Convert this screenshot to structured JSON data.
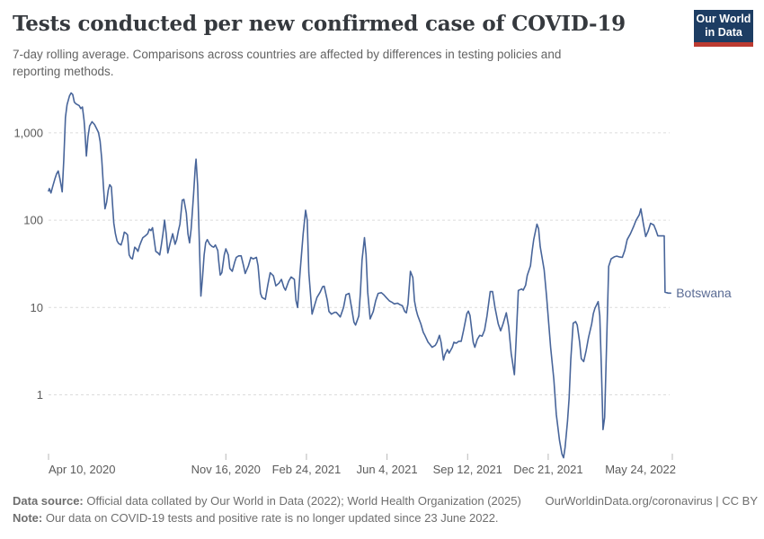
{
  "header": {
    "title": "Tests conducted per new confirmed case of COVID-19",
    "subtitle_lines": [
      "7-day rolling average. Comparisons across countries are affected by differences in testing policies and",
      "reporting methods."
    ],
    "logo": {
      "line1": "Our World",
      "line2": "in Data"
    }
  },
  "footer": {
    "source_label": "Data source:",
    "source_text": " Official data collated by Our World in Data (2022); World Health Organization (2025)",
    "attribution": "OurWorldinData.org/coronavirus | CC BY",
    "note_label": "Note:",
    "note_text": " Our data on COVID-19 tests and positive rate is no longer updated since 23 June 2022."
  },
  "colors": {
    "line": "#48659a",
    "end_label": "#5a6b94",
    "grid": "#dcdcdc",
    "axis_text": "#5b5b5b",
    "tick_mark": "#b8b8b8",
    "logo_bg": "#1d3d63",
    "logo_accent": "#bc3b31"
  },
  "chart_data": {
    "type": "line",
    "title": "Tests conducted per new confirmed case of COVID-19",
    "xlabel": "",
    "ylabel": "",
    "grid": true,
    "legend_position": "end-of-line-label",
    "y_axis": {
      "scale": "log",
      "ticks": [
        {
          "label": "1",
          "value": 1
        },
        {
          "label": "10",
          "value": 10
        },
        {
          "label": "100",
          "value": 100
        },
        {
          "label": "1,000",
          "value": 1000
        }
      ]
    },
    "x_axis": {
      "type": "time",
      "unit": "days since Apr 10, 2020",
      "domain_days": [
        0,
        774
      ],
      "ticks": [
        {
          "label": "Apr 10, 2020",
          "day": 0
        },
        {
          "label": "Nov 16, 2020",
          "day": 220
        },
        {
          "label": "Feb 24, 2021",
          "day": 320
        },
        {
          "label": "Jun 4, 2021",
          "day": 420
        },
        {
          "label": "Sep 12, 2021",
          "day": 520
        },
        {
          "label": "Dec 21, 2021",
          "day": 620
        },
        {
          "label": "May 24, 2022",
          "day": 774
        }
      ]
    },
    "series": [
      {
        "name": "Botswana",
        "points": [
          [
            0,
            216
          ],
          [
            1,
            230
          ],
          [
            3,
            205
          ],
          [
            5,
            240
          ],
          [
            8,
            300
          ],
          [
            10,
            340
          ],
          [
            12,
            366
          ],
          [
            13,
            330
          ],
          [
            14,
            300
          ],
          [
            16,
            240
          ],
          [
            17,
            211
          ],
          [
            19,
            500
          ],
          [
            21,
            1500
          ],
          [
            23,
            2100
          ],
          [
            26,
            2650
          ],
          [
            28,
            2860
          ],
          [
            30,
            2750
          ],
          [
            32,
            2250
          ],
          [
            34,
            2150
          ],
          [
            36,
            2100
          ],
          [
            38,
            2050
          ],
          [
            40,
            1900
          ],
          [
            42,
            1980
          ],
          [
            44,
            1400
          ],
          [
            45,
            1100
          ],
          [
            47,
            543
          ],
          [
            49,
            900
          ],
          [
            51,
            1200
          ],
          [
            54,
            1340
          ],
          [
            56,
            1280
          ],
          [
            57,
            1250
          ],
          [
            59,
            1150
          ],
          [
            62,
            1010
          ],
          [
            64,
            800
          ],
          [
            66,
            500
          ],
          [
            68,
            250
          ],
          [
            70,
            135
          ],
          [
            72,
            160
          ],
          [
            74,
            220
          ],
          [
            76,
            255
          ],
          [
            78,
            240
          ],
          [
            81,
            93
          ],
          [
            83,
            70
          ],
          [
            85,
            58
          ],
          [
            87,
            54
          ],
          [
            90,
            52
          ],
          [
            92,
            60
          ],
          [
            94,
            73
          ],
          [
            96,
            71
          ],
          [
            98,
            68
          ],
          [
            100,
            40
          ],
          [
            102,
            37
          ],
          [
            104,
            36
          ],
          [
            107,
            49
          ],
          [
            109,
            47
          ],
          [
            111,
            44
          ],
          [
            113,
            51
          ],
          [
            115,
            57
          ],
          [
            117,
            63
          ],
          [
            120,
            66
          ],
          [
            123,
            70
          ],
          [
            125,
            79
          ],
          [
            127,
            76
          ],
          [
            129,
            82
          ],
          [
            131,
            60
          ],
          [
            133,
            44
          ],
          [
            136,
            42
          ],
          [
            138,
            40
          ],
          [
            140,
            52
          ],
          [
            142,
            70
          ],
          [
            144,
            100
          ],
          [
            146,
            70
          ],
          [
            148,
            42
          ],
          [
            151,
            55
          ],
          [
            154,
            70
          ],
          [
            157,
            53
          ],
          [
            159,
            60
          ],
          [
            161,
            75
          ],
          [
            163,
            90
          ],
          [
            166,
            170
          ],
          [
            168,
            173
          ],
          [
            171,
            120
          ],
          [
            173,
            70
          ],
          [
            175,
            55
          ],
          [
            177,
            80
          ],
          [
            180,
            200
          ],
          [
            182,
            400
          ],
          [
            183,
            500
          ],
          [
            185,
            250
          ],
          [
            187,
            60
          ],
          [
            189,
            13.5
          ],
          [
            191,
            22
          ],
          [
            193,
            40
          ],
          [
            195,
            55
          ],
          [
            197,
            60
          ],
          [
            200,
            53
          ],
          [
            203,
            50
          ],
          [
            205,
            49
          ],
          [
            207,
            52
          ],
          [
            210,
            45
          ],
          [
            211,
            35
          ],
          [
            213,
            23.5
          ],
          [
            215,
            25
          ],
          [
            218,
            40
          ],
          [
            220,
            47
          ],
          [
            223,
            40
          ],
          [
            225,
            28
          ],
          [
            228,
            26
          ],
          [
            231,
            33
          ],
          [
            233,
            37.5
          ],
          [
            236,
            39
          ],
          [
            239,
            39
          ],
          [
            242,
            30
          ],
          [
            244,
            24.5
          ],
          [
            248,
            30
          ],
          [
            251,
            37.5
          ],
          [
            254,
            36
          ],
          [
            258,
            37.5
          ],
          [
            260,
            30
          ],
          [
            263,
            14.5
          ],
          [
            265,
            13
          ],
          [
            269,
            12.4
          ],
          [
            272,
            18
          ],
          [
            275,
            25
          ],
          [
            279,
            23
          ],
          [
            282,
            17.7
          ],
          [
            286,
            19
          ],
          [
            289,
            21
          ],
          [
            292,
            17
          ],
          [
            294,
            15.8
          ],
          [
            298,
            20
          ],
          [
            301,
            22.4
          ],
          [
            305,
            21
          ],
          [
            307,
            12
          ],
          [
            309,
            10
          ],
          [
            312,
            25
          ],
          [
            316,
            70
          ],
          [
            319,
            130
          ],
          [
            321,
            100
          ],
          [
            323,
            25
          ],
          [
            327,
            8.4
          ],
          [
            330,
            10.5
          ],
          [
            333,
            13
          ],
          [
            337,
            15
          ],
          [
            340,
            17.3
          ],
          [
            342,
            17.5
          ],
          [
            346,
            12
          ],
          [
            348,
            9
          ],
          [
            351,
            8.4
          ],
          [
            355,
            8.8
          ],
          [
            357,
            8.8
          ],
          [
            360,
            8.2
          ],
          [
            362,
            7.8
          ],
          [
            366,
            10
          ],
          [
            369,
            14
          ],
          [
            373,
            14.5
          ],
          [
            376,
            10
          ],
          [
            379,
            6.8
          ],
          [
            381,
            6.3
          ],
          [
            385,
            8
          ],
          [
            387,
            15
          ],
          [
            389,
            35
          ],
          [
            392,
            63
          ],
          [
            394,
            40
          ],
          [
            396,
            15
          ],
          [
            399,
            7.4
          ],
          [
            403,
            9
          ],
          [
            406,
            12
          ],
          [
            409,
            14.5
          ],
          [
            413,
            14.8
          ],
          [
            416,
            14
          ],
          [
            419,
            13
          ],
          [
            423,
            11.9
          ],
          [
            426,
            11.5
          ],
          [
            429,
            11
          ],
          [
            433,
            11.2
          ],
          [
            436,
            10.8
          ],
          [
            439,
            10.5
          ],
          [
            442,
            9
          ],
          [
            444,
            8.7
          ],
          [
            446,
            11
          ],
          [
            449,
            26
          ],
          [
            452,
            22
          ],
          [
            454,
            12
          ],
          [
            456,
            9.5
          ],
          [
            458,
            8.1
          ],
          [
            462,
            6.5
          ],
          [
            465,
            5.2
          ],
          [
            467,
            4.8
          ],
          [
            471,
            4
          ],
          [
            473,
            3.8
          ],
          [
            476,
            3.5
          ],
          [
            480,
            3.7
          ],
          [
            482,
            4
          ],
          [
            485,
            4.8
          ],
          [
            487,
            4
          ],
          [
            490,
            2.5
          ],
          [
            492,
            2.9
          ],
          [
            495,
            3.3
          ],
          [
            497,
            3
          ],
          [
            501,
            3.5
          ],
          [
            503,
            4
          ],
          [
            506,
            3.9
          ],
          [
            509,
            4.1
          ],
          [
            512,
            4.1
          ],
          [
            515,
            5.5
          ],
          [
            519,
            8.5
          ],
          [
            521,
            9.1
          ],
          [
            523,
            8.1
          ],
          [
            527,
            4
          ],
          [
            529,
            3.5
          ],
          [
            532,
            4.3
          ],
          [
            535,
            4.8
          ],
          [
            538,
            4.7
          ],
          [
            541,
            5.5
          ],
          [
            544,
            8
          ],
          [
            548,
            15.2
          ],
          [
            551,
            15.2
          ],
          [
            554,
            10
          ],
          [
            558,
            6.5
          ],
          [
            561,
            5.4
          ],
          [
            564,
            6.5
          ],
          [
            568,
            8.7
          ],
          [
            571,
            6
          ],
          [
            574,
            3
          ],
          [
            578,
            1.7
          ],
          [
            580,
            4
          ],
          [
            583,
            15.7
          ],
          [
            587,
            16.3
          ],
          [
            589,
            15.8
          ],
          [
            592,
            18
          ],
          [
            594,
            23.3
          ],
          [
            598,
            30
          ],
          [
            600,
            44
          ],
          [
            602,
            60
          ],
          [
            606,
            90
          ],
          [
            608,
            80
          ],
          [
            610,
            50
          ],
          [
            615,
            27
          ],
          [
            618,
            13.4
          ],
          [
            621,
            6
          ],
          [
            623,
            3.5
          ],
          [
            627,
            1.5
          ],
          [
            630,
            0.6
          ],
          [
            634,
            0.3
          ],
          [
            637,
            0.21
          ],
          [
            639,
            0.19
          ],
          [
            641,
            0.25
          ],
          [
            644,
            0.5
          ],
          [
            646,
            0.92
          ],
          [
            648,
            2.5
          ],
          [
            651,
            6.6
          ],
          [
            654,
            6.9
          ],
          [
            656,
            6.3
          ],
          [
            659,
            4
          ],
          [
            661,
            2.6
          ],
          [
            664,
            2.4
          ],
          [
            667,
            3.2
          ],
          [
            670,
            4.5
          ],
          [
            674,
            6.5
          ],
          [
            676,
            8.5
          ],
          [
            678,
            9.8
          ],
          [
            682,
            11.7
          ],
          [
            684,
            8
          ],
          [
            686,
            2
          ],
          [
            688,
            0.4
          ],
          [
            690,
            0.55
          ],
          [
            693,
            6
          ],
          [
            695,
            29.6
          ],
          [
            698,
            36
          ],
          [
            702,
            38
          ],
          [
            705,
            38.8
          ],
          [
            708,
            38
          ],
          [
            712,
            37.5
          ],
          [
            715,
            45
          ],
          [
            718,
            60
          ],
          [
            722,
            70
          ],
          [
            726,
            85
          ],
          [
            729,
            100
          ],
          [
            733,
            115
          ],
          [
            735,
            135
          ],
          [
            738,
            92
          ],
          [
            741,
            65
          ],
          [
            744,
            75
          ],
          [
            747,
            92
          ],
          [
            751,
            88
          ],
          [
            754,
            75
          ],
          [
            756,
            66
          ],
          [
            761,
            66
          ],
          [
            764,
            66
          ],
          [
            765,
            15
          ],
          [
            769,
            14.6
          ],
          [
            772,
            14.6
          ]
        ]
      }
    ]
  }
}
